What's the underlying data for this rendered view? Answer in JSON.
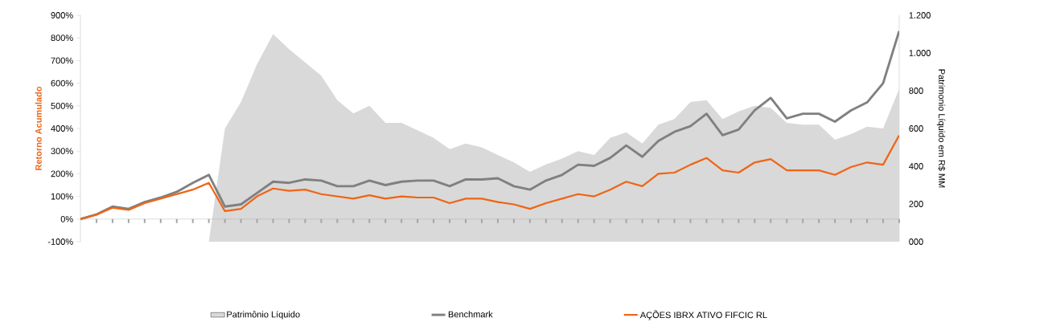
{
  "chart_data": {
    "type": "line",
    "ylabel": "Retorno Acumulado",
    "y2label": "Patrimonio Líquido em R$ MM",
    "categories": [
      null,
      null,
      null,
      null,
      null,
      null,
      null,
      null,
      null,
      null,
      null,
      null,
      null,
      null,
      null,
      null,
      null,
      null,
      null,
      null,
      null,
      null,
      null,
      null,
      null,
      null,
      null,
      null,
      null,
      null,
      null,
      null,
      null,
      null,
      null,
      null,
      null,
      null,
      null,
      null,
      null,
      null,
      null,
      null,
      null,
      null,
      null,
      null,
      null,
      null,
      null,
      null
    ],
    "ylim": [
      -100,
      900
    ],
    "yticks": [
      {
        "value": -100,
        "label": "-100%"
      },
      {
        "value": 0,
        "label": "0%"
      },
      {
        "value": 100,
        "label": "100%"
      },
      {
        "value": 200,
        "label": "200%"
      },
      {
        "value": 300,
        "label": "300%"
      },
      {
        "value": 400,
        "label": "400%"
      },
      {
        "value": 500,
        "label": "500%"
      },
      {
        "value": 600,
        "label": "600%"
      },
      {
        "value": 700,
        "label": "700%"
      },
      {
        "value": 800,
        "label": "800%"
      },
      {
        "value": 900,
        "label": "900%"
      }
    ],
    "y2lim": [
      0,
      1200
    ],
    "y2ticks": [
      {
        "value": 0,
        "label": "000"
      },
      {
        "value": 200,
        "label": "200"
      },
      {
        "value": 400,
        "label": "400"
      },
      {
        "value": 600,
        "label": "600"
      },
      {
        "value": 800,
        "label": "800"
      },
      {
        "value": 1000,
        "label": "1.000"
      },
      {
        "value": 1200,
        "label": "1.200"
      }
    ],
    "legend": "bottom",
    "series": [
      {
        "name": "Patrimônio Líquido",
        "type": "area",
        "axis": "y2",
        "color": "#d9d9d9",
        "values": [
          0,
          0,
          0,
          0,
          0,
          0,
          0,
          0,
          0,
          600,
          740,
          940,
          1100,
          1020,
          950,
          880,
          750,
          680,
          720,
          630,
          630,
          590,
          550,
          490,
          520,
          500,
          460,
          420,
          370,
          410,
          440,
          480,
          460,
          550,
          580,
          520,
          620,
          650,
          740,
          750,
          650,
          690,
          720,
          710,
          630,
          620,
          620,
          540,
          570,
          610,
          600,
          810
        ]
      },
      {
        "name": "Benchmark",
        "type": "line",
        "color": "#808080",
        "values": [
          0,
          20,
          55,
          45,
          75,
          95,
          120,
          160,
          195,
          55,
          65,
          115,
          165,
          160,
          175,
          170,
          145,
          145,
          170,
          150,
          165,
          170,
          170,
          145,
          175,
          175,
          180,
          145,
          130,
          170,
          195,
          240,
          235,
          270,
          325,
          275,
          345,
          385,
          410,
          465,
          370,
          395,
          480,
          535,
          445,
          465,
          465,
          430,
          480,
          515,
          600,
          830
        ]
      },
      {
        "name": "AÇÕES IBRX ATIVO FIFCIC RL",
        "type": "line",
        "color": "#f06414",
        "values": [
          0,
          20,
          50,
          40,
          70,
          90,
          110,
          130,
          160,
          35,
          45,
          100,
          135,
          125,
          130,
          110,
          100,
          90,
          105,
          90,
          100,
          95,
          95,
          70,
          90,
          90,
          75,
          65,
          45,
          70,
          90,
          110,
          100,
          130,
          165,
          145,
          200,
          205,
          240,
          270,
          215,
          205,
          250,
          265,
          215,
          215,
          215,
          195,
          230,
          250,
          240,
          370
        ]
      }
    ]
  }
}
